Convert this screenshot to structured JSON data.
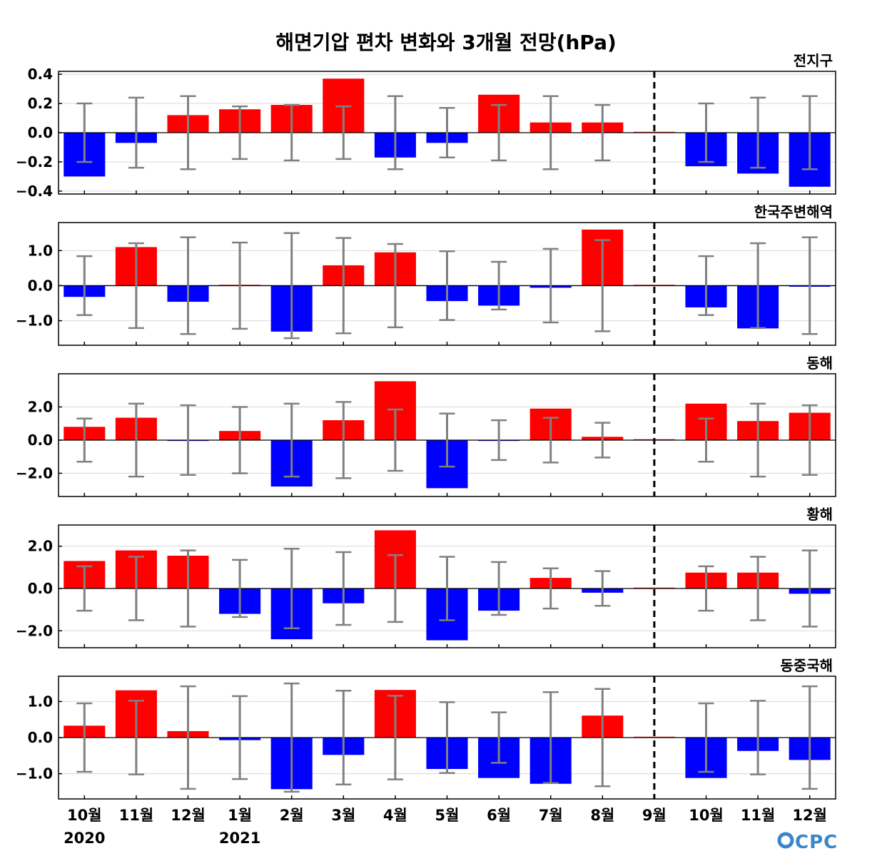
{
  "title": "해면기압 편차 변화와 3개월 전망(hPa)",
  "logo": "CPC",
  "x_labels": [
    "10월",
    "11월",
    "12월",
    "1월",
    "2월",
    "3월",
    "4월",
    "5월",
    "6월",
    "7월",
    "8월",
    "9월",
    "10월",
    "11월",
    "12월"
  ],
  "year_labels": [
    {
      "index": 0,
      "text": "2020"
    },
    {
      "index": 3,
      "text": "2021"
    }
  ],
  "forecast_start_index": 12,
  "colors": {
    "positive": "#ff0000",
    "negative": "#0000ff",
    "errorbar": "#808080",
    "grid": "#d9d9d9"
  },
  "chart_data": [
    {
      "type": "bar",
      "title": "전지구",
      "ylim": [
        -0.42,
        0.42
      ],
      "yticks": [
        -0.4,
        -0.2,
        0.0,
        0.2,
        0.4
      ],
      "ytick_labels": [
        "−0.4",
        "−0.2",
        "0.0",
        "0.2",
        "0.4"
      ],
      "values": [
        -0.3,
        -0.07,
        0.12,
        0.16,
        0.19,
        0.37,
        -0.17,
        -0.07,
        0.26,
        0.07,
        0.07,
        0.0,
        -0.23,
        -0.28,
        -0.37
      ],
      "error": [
        0.2,
        0.24,
        0.25,
        0.18,
        0.19,
        0.18,
        0.25,
        0.17,
        0.19,
        0.25,
        0.19,
        0.0,
        0.2,
        0.24,
        0.25
      ]
    },
    {
      "type": "bar",
      "title": "한국주변해역",
      "ylim": [
        -1.7,
        1.8
      ],
      "yticks": [
        -1.0,
        0.0,
        1.0
      ],
      "ytick_labels": [
        "−1.0",
        "0.0",
        "1.0"
      ],
      "values": [
        -0.32,
        1.1,
        -0.46,
        0.02,
        -1.31,
        0.58,
        0.95,
        -0.44,
        -0.57,
        -0.06,
        1.6,
        0.0,
        -0.62,
        -1.22,
        -0.03
      ],
      "error": [
        0.84,
        1.21,
        1.38,
        1.23,
        1.5,
        1.36,
        1.19,
        0.98,
        0.68,
        1.05,
        1.3,
        0.0,
        0.84,
        1.21,
        1.38
      ]
    },
    {
      "type": "bar",
      "title": "동해",
      "ylim": [
        -3.4,
        4.0
      ],
      "yticks": [
        -2.0,
        0.0,
        2.0
      ],
      "ytick_labels": [
        "−2.0",
        "0.0",
        "2.0"
      ],
      "values": [
        0.8,
        1.35,
        -0.05,
        0.55,
        -2.8,
        1.2,
        3.55,
        -2.9,
        -0.05,
        1.9,
        0.2,
        0.0,
        2.2,
        1.15,
        1.65
      ],
      "error": [
        1.3,
        2.2,
        2.1,
        2.0,
        2.2,
        2.3,
        1.85,
        1.6,
        1.2,
        1.35,
        1.05,
        0.0,
        1.3,
        2.2,
        2.1
      ]
    },
    {
      "type": "bar",
      "title": "황해",
      "ylim": [
        -2.8,
        3.0
      ],
      "yticks": [
        -2.0,
        0.0,
        2.0
      ],
      "ytick_labels": [
        "−2.0",
        "0.0",
        "2.0"
      ],
      "values": [
        1.3,
        1.8,
        1.55,
        -1.2,
        -2.4,
        -0.7,
        2.75,
        -2.45,
        -1.05,
        0.5,
        -0.2,
        0.0,
        0.75,
        0.75,
        -0.25
      ],
      "error": [
        1.05,
        1.5,
        1.8,
        1.35,
        1.88,
        1.72,
        1.58,
        1.5,
        1.25,
        0.95,
        0.82,
        0.0,
        1.05,
        1.5,
        1.8
      ]
    },
    {
      "type": "bar",
      "title": "동중국해",
      "ylim": [
        -1.7,
        1.7
      ],
      "yticks": [
        -1.0,
        0.0,
        1.0
      ],
      "ytick_labels": [
        "−1.0",
        "0.0",
        "1.0"
      ],
      "values": [
        0.33,
        1.31,
        0.18,
        -0.07,
        -1.43,
        -0.48,
        1.32,
        -0.87,
        -1.12,
        -1.28,
        0.61,
        0.0,
        -1.12,
        -0.37,
        -0.62
      ],
      "error": [
        0.95,
        1.02,
        1.42,
        1.15,
        1.5,
        1.3,
        1.16,
        0.98,
        0.7,
        1.26,
        1.35,
        0.0,
        0.95,
        1.02,
        1.42
      ]
    }
  ]
}
